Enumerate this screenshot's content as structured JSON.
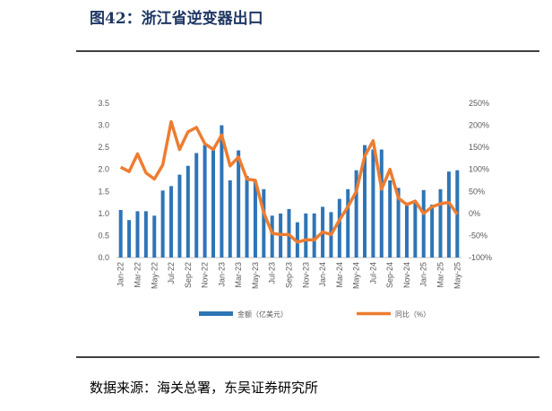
{
  "chart_data": {
    "type": "bar",
    "title": "图42：浙江省逆变器出口",
    "source": "数据来源：海关总署，东吴证券研究所",
    "categories": [
      "Jan-22",
      null,
      "Mar-22",
      null,
      "May-22",
      null,
      "Jul-22",
      null,
      "Sep-22",
      null,
      "Nov-22",
      null,
      "Jan-23",
      null,
      "Mar-23",
      null,
      "May-23",
      null,
      "Jul-23",
      null,
      "Sep-23",
      null,
      "Nov-23",
      null,
      "Jan-24",
      null,
      "Mar-24",
      null,
      "May-24",
      null,
      "Jul-24",
      null,
      "Sep-24",
      null,
      "Nov-24",
      null,
      "Jan-25",
      null,
      "Mar-25",
      null,
      "May-25"
    ],
    "series": [
      {
        "name": "金额（亿美元）",
        "type": "bar",
        "color": "#2e75b6",
        "values": [
          1.08,
          0.85,
          1.05,
          1.05,
          0.95,
          1.52,
          1.62,
          1.88,
          2.08,
          2.37,
          2.55,
          2.45,
          3.0,
          1.75,
          2.43,
          1.85,
          1.75,
          1.55,
          0.95,
          1.0,
          1.1,
          0.8,
          1.0,
          1.0,
          1.15,
          1.03,
          1.33,
          1.55,
          1.98,
          2.55,
          2.45,
          2.45,
          1.75,
          1.58,
          1.25,
          1.25,
          1.53,
          1.2,
          1.55,
          1.95,
          1.98
        ]
      },
      {
        "name": "同比（%）",
        "type": "line",
        "axis": "y2",
        "color": "#ed7d31",
        "values": [
          105,
          95,
          135,
          92,
          78,
          110,
          208,
          145,
          185,
          195,
          158,
          145,
          178,
          108,
          128,
          78,
          75,
          2,
          -45,
          -48,
          -48,
          -65,
          -60,
          -60,
          -42,
          -48,
          -15,
          15,
          50,
          130,
          165,
          55,
          100,
          35,
          20,
          28,
          0,
          15,
          22,
          25,
          -2
        ]
      }
    ],
    "ylim": [
      0,
      3.5
    ],
    "yticks": [
      {
        "value": 0,
        "label": "0.0"
      },
      0.5,
      {
        "value": 1,
        "label": "1.0"
      },
      1.5,
      {
        "value": 2,
        "label": "2.0"
      },
      2.5,
      {
        "value": 3,
        "label": "3.0"
      },
      3.5
    ],
    "y2lim": [
      -100,
      250
    ],
    "y2ticks": [
      {
        "value": -100,
        "label": "-100%"
      },
      {
        "value": -50,
        "label": "-50%"
      },
      {
        "value": 0,
        "label": "0%"
      },
      {
        "value": 50,
        "label": "50%"
      },
      {
        "value": 100,
        "label": "100%"
      },
      {
        "value": 150,
        "label": "150%"
      },
      {
        "value": 200,
        "label": "200%"
      },
      {
        "value": 250,
        "label": "250%"
      }
    ],
    "grid": false,
    "legend": "bottom"
  }
}
